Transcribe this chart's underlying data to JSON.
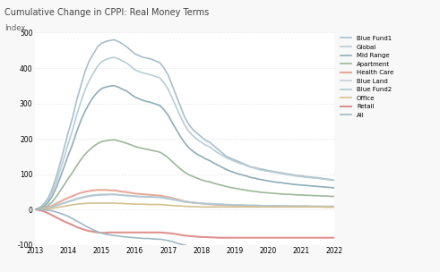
{
  "title": "Cumulative Change in CPPI: Real Money Terms",
  "subtitle": "Index",
  "x_labels": [
    "2013",
    "2014",
    "2015",
    "2016",
    "2017",
    "2018",
    "2019",
    "2020",
    "2021",
    "2022"
  ],
  "ylim": [
    -100,
    500
  ],
  "yticks": [
    -100,
    0,
    100,
    200,
    300,
    400,
    500
  ],
  "series": [
    {
      "name": "Blue Fund1",
      "color": "#a8bfcc",
      "linewidth": 1.2,
      "values": [
        0,
        5,
        15,
        30,
        55,
        90,
        130,
        175,
        220,
        260,
        310,
        350,
        390,
        420,
        440,
        460,
        470,
        475,
        478,
        480,
        475,
        468,
        460,
        450,
        440,
        435,
        430,
        428,
        425,
        420,
        415,
        400,
        380,
        350,
        320,
        290,
        260,
        240,
        225,
        215,
        205,
        195,
        190,
        180,
        170,
        160,
        150,
        145,
        140,
        135,
        130,
        125,
        120,
        118,
        115,
        113,
        110,
        108,
        106,
        104,
        102,
        100,
        98,
        96,
        95,
        93,
        92,
        91,
        90,
        88,
        86,
        85,
        83
      ]
    },
    {
      "name": "Global",
      "color": "#b8cdd4",
      "linewidth": 1.2,
      "values": [
        0,
        4,
        12,
        24,
        45,
        75,
        110,
        148,
        188,
        225,
        268,
        305,
        338,
        365,
        385,
        405,
        418,
        424,
        428,
        430,
        426,
        420,
        414,
        405,
        395,
        390,
        386,
        383,
        380,
        376,
        372,
        358,
        340,
        314,
        288,
        262,
        238,
        220,
        208,
        198,
        190,
        182,
        177,
        168,
        160,
        153,
        146,
        141,
        136,
        131,
        128,
        123,
        119,
        116,
        112,
        110,
        108,
        106,
        104,
        102,
        100,
        98,
        96,
        94,
        93,
        91,
        90,
        89,
        88,
        86,
        85,
        83,
        82
      ]
    },
    {
      "name": "Mid Range",
      "color": "#8fadb8",
      "linewidth": 1.2,
      "values": [
        0,
        3,
        8,
        18,
        35,
        60,
        90,
        122,
        155,
        185,
        220,
        252,
        278,
        300,
        318,
        332,
        342,
        346,
        349,
        350,
        346,
        340,
        335,
        326,
        318,
        313,
        308,
        305,
        302,
        298,
        294,
        282,
        266,
        245,
        225,
        205,
        188,
        174,
        164,
        156,
        150,
        143,
        138,
        131,
        125,
        119,
        113,
        108,
        104,
        100,
        97,
        94,
        90,
        88,
        85,
        83,
        81,
        79,
        77,
        76,
        74,
        73,
        71,
        70,
        69,
        68,
        67,
        66,
        65,
        64,
        63,
        62,
        61
      ]
    },
    {
      "name": "Apartment",
      "color": "#9db89a",
      "linewidth": 1.2,
      "values": [
        0,
        2,
        5,
        10,
        20,
        35,
        52,
        70,
        88,
        105,
        124,
        141,
        156,
        168,
        178,
        186,
        192,
        194,
        196,
        197,
        194,
        191,
        187,
        183,
        178,
        175,
        172,
        170,
        167,
        165,
        162,
        155,
        146,
        135,
        124,
        114,
        105,
        98,
        93,
        88,
        84,
        80,
        78,
        74,
        71,
        68,
        65,
        62,
        60,
        58,
        56,
        54,
        52,
        51,
        49,
        48,
        47,
        46,
        45,
        44,
        43,
        43,
        42,
        41,
        41,
        40,
        40,
        39,
        39,
        38,
        38,
        37,
        37
      ]
    },
    {
      "name": "Health Care",
      "color": "#e8a898",
      "linewidth": 1.5,
      "values": [
        0,
        1,
        3,
        6,
        10,
        16,
        22,
        28,
        33,
        38,
        43,
        47,
        50,
        52,
        54,
        55,
        55,
        55,
        54,
        54,
        52,
        50,
        49,
        47,
        45,
        44,
        43,
        42,
        41,
        40,
        39,
        37,
        35,
        32,
        29,
        26,
        23,
        21,
        19,
        18,
        17,
        16,
        15,
        14,
        13,
        13,
        12,
        12,
        11,
        11,
        11,
        10,
        10,
        10,
        10,
        9,
        9,
        9,
        9,
        9,
        9,
        9,
        8,
        8,
        8,
        8,
        8,
        8,
        8,
        8,
        7,
        7,
        7
      ]
    },
    {
      "name": "Blue Land",
      "color": "#c4d0d8",
      "linewidth": 1.2,
      "values": [
        0,
        1,
        2,
        4,
        7,
        11,
        15,
        19,
        23,
        27,
        31,
        34,
        37,
        39,
        41,
        42,
        43,
        43,
        43,
        43,
        42,
        41,
        40,
        39,
        38,
        37,
        37,
        36,
        36,
        35,
        35,
        33,
        32,
        30,
        27,
        25,
        23,
        21,
        20,
        19,
        18,
        17,
        17,
        16,
        15,
        15,
        14,
        14,
        13,
        13,
        13,
        12,
        12,
        12,
        11,
        11,
        11,
        11,
        11,
        10,
        10,
        10,
        10,
        10,
        10,
        10,
        9,
        9,
        9,
        9,
        9,
        9,
        9
      ]
    },
    {
      "name": "Blue Fund2",
      "color": "#b0c8d0",
      "linewidth": 1.2,
      "values": [
        0,
        1,
        2,
        4,
        7,
        10,
        14,
        18,
        22,
        25,
        29,
        32,
        35,
        37,
        39,
        40,
        41,
        41,
        42,
        42,
        41,
        40,
        39,
        38,
        37,
        36,
        36,
        35,
        35,
        34,
        34,
        32,
        30,
        28,
        26,
        23,
        21,
        20,
        19,
        18,
        17,
        16,
        15,
        15,
        14,
        14,
        13,
        13,
        12,
        12,
        12,
        11,
        11,
        11,
        11,
        10,
        10,
        10,
        10,
        10,
        10,
        9,
        9,
        9,
        9,
        9,
        9,
        8,
        8,
        8,
        8,
        8,
        8
      ]
    },
    {
      "name": "Office",
      "color": "#d4c090",
      "linewidth": 1.2,
      "values": [
        0,
        0,
        1,
        2,
        3,
        5,
        7,
        9,
        11,
        13,
        15,
        16,
        17,
        18,
        18,
        18,
        18,
        18,
        18,
        18,
        17,
        17,
        16,
        16,
        15,
        15,
        15,
        14,
        14,
        14,
        14,
        13,
        12,
        11,
        10,
        10,
        9,
        8,
        8,
        8,
        7,
        7,
        7,
        7,
        7,
        7,
        7,
        7,
        7,
        7,
        7,
        7,
        7,
        7,
        7,
        7,
        7,
        7,
        7,
        7,
        7,
        7,
        7,
        7,
        7,
        7,
        7,
        7,
        7,
        7,
        7,
        7,
        7
      ]
    },
    {
      "name": "Retail",
      "color": "#e09090",
      "linewidth": 1.5,
      "values": [
        0,
        -2,
        -5,
        -10,
        -16,
        -22,
        -28,
        -34,
        -39,
        -44,
        -50,
        -54,
        -58,
        -61,
        -63,
        -65,
        -66,
        -66,
        -65,
        -65,
        -65,
        -65,
        -65,
        -65,
        -65,
        -65,
        -65,
        -65,
        -65,
        -65,
        -65,
        -66,
        -67,
        -68,
        -70,
        -72,
        -74,
        -75,
        -76,
        -77,
        -78,
        -78,
        -79,
        -79,
        -80,
        -80,
        -80,
        -80,
        -80,
        -80,
        -80,
        -80,
        -80,
        -80,
        -80,
        -80,
        -80,
        -80,
        -80,
        -80,
        -80,
        -80,
        -80,
        -80,
        -80,
        -80,
        -80,
        -80,
        -80,
        -80,
        -80,
        -80,
        -80
      ]
    },
    {
      "name": "All",
      "color": "#a0b8c4",
      "linewidth": 1.2,
      "values": [
        0,
        0,
        -1,
        -2,
        -4,
        -7,
        -11,
        -15,
        -20,
        -26,
        -33,
        -39,
        -46,
        -52,
        -58,
        -63,
        -67,
        -70,
        -72,
        -74,
        -75,
        -77,
        -78,
        -79,
        -80,
        -81,
        -82,
        -82,
        -83,
        -84,
        -84,
        -86,
        -88,
        -91,
        -95,
        -98,
        -101,
        -104,
        -107,
        -109,
        -111,
        -113,
        -114,
        -116,
        -117,
        -118,
        -119,
        -120,
        -121,
        -121,
        -122,
        -122,
        -123,
        -123,
        -123,
        -124,
        -124,
        -124,
        -124,
        -124,
        -125,
        -125,
        -125,
        -125,
        -125,
        -125,
        -125,
        -125,
        -125,
        -125,
        -125,
        -125,
        -125
      ]
    }
  ],
  "background_color": "#f8f8f8",
  "plot_bg_color": "#ffffff",
  "grid_color": "#e8e8e8",
  "title_fontsize": 7,
  "subtitle_fontsize": 6,
  "tick_fontsize": 5.5,
  "legend_fontsize": 5
}
